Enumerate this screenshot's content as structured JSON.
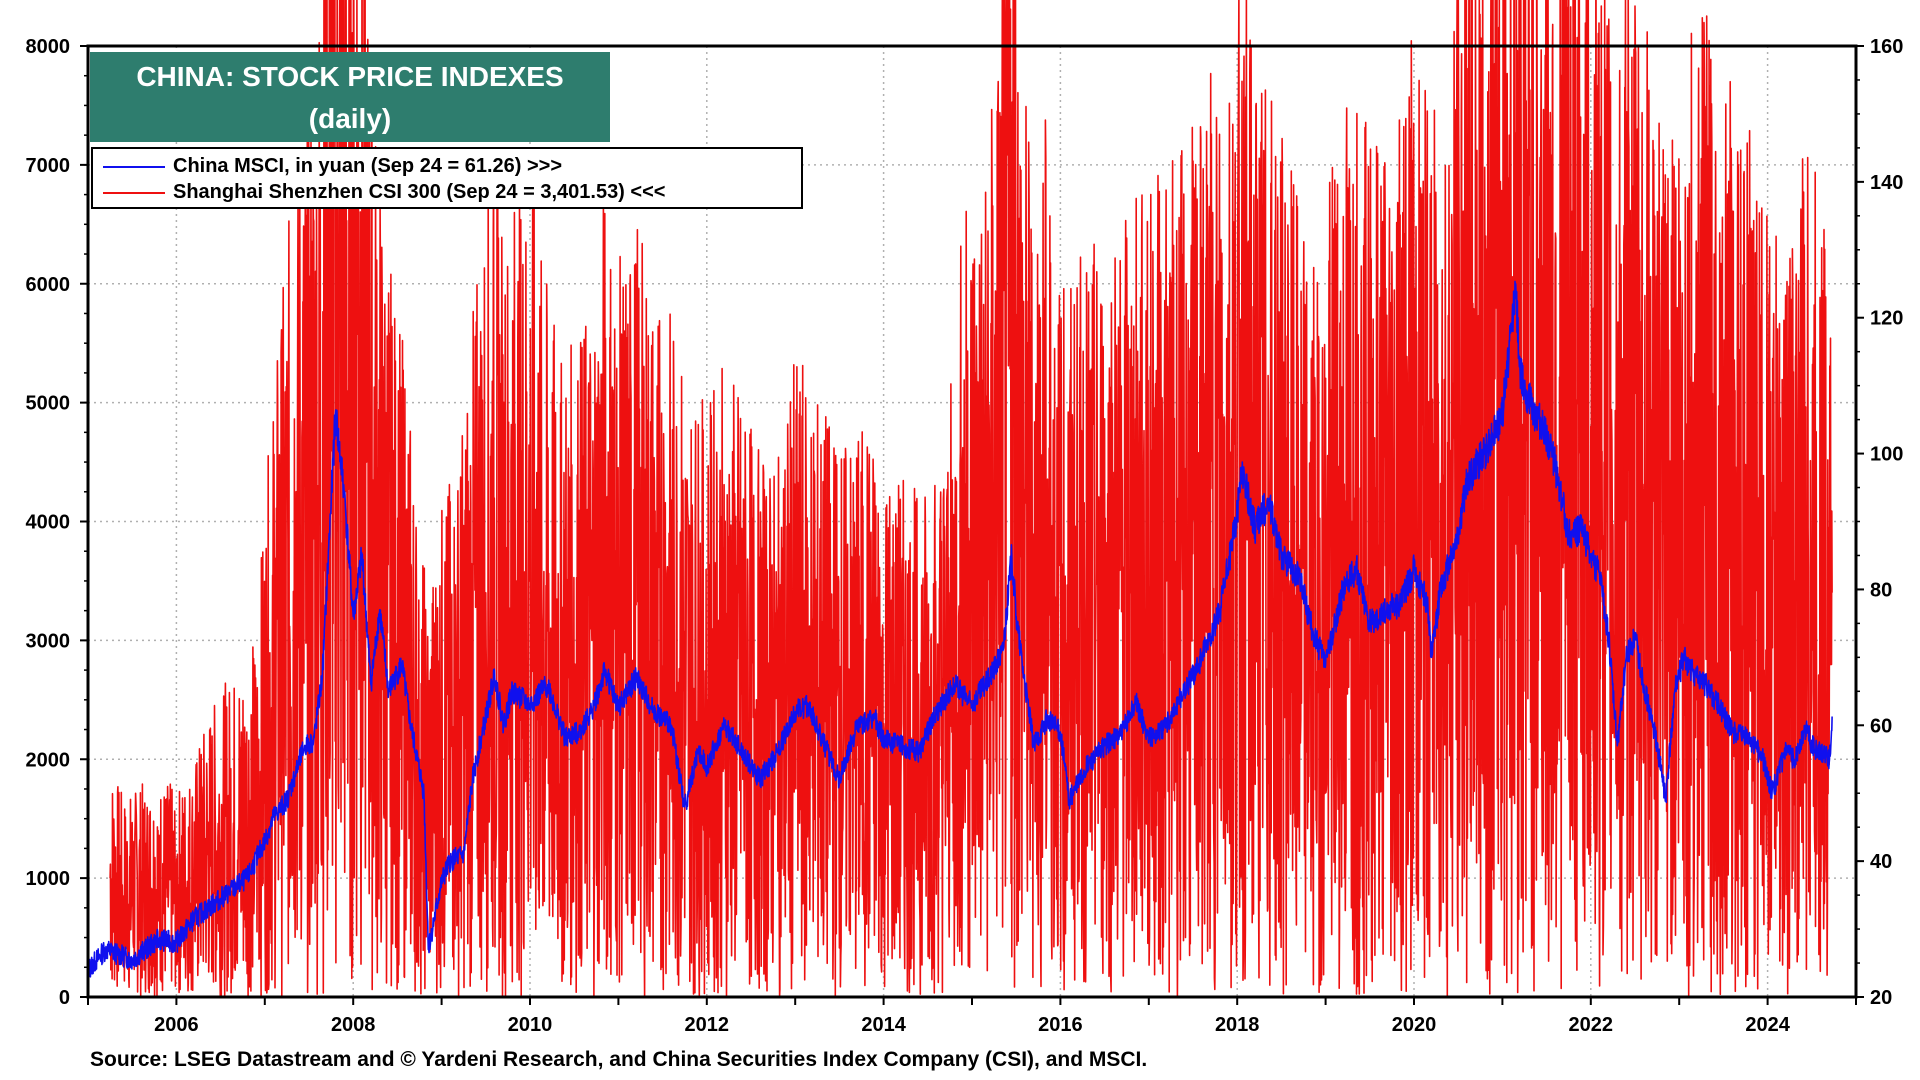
{
  "title": {
    "line1": "CHINA: STOCK PRICE INDEXES",
    "line2": "(daily)"
  },
  "legend": {
    "msci": "China MSCI, in yuan (Sep 24 = 61.26) >>>",
    "csi": "Shanghai Shenzhen CSI 300 (Sep 24 = 3,401.53) <<<"
  },
  "source": "Source: LSEG Datastream and © Yardeni Research, and China Securities Index Company (CSI), and MSCI.",
  "colors": {
    "msci": "#1010ee",
    "csi": "#ee1010",
    "title_bg": "#2e7d6e"
  },
  "chart_data": {
    "type": "line",
    "title": "CHINA: STOCK PRICE INDEXES (daily)",
    "x_range": [
      2005.0,
      2025.0
    ],
    "x_ticks": [
      "2006",
      "2008",
      "2010",
      "2012",
      "2014",
      "2016",
      "2018",
      "2020",
      "2022",
      "2024"
    ],
    "y_left": {
      "range": [
        0,
        8000
      ],
      "ticks": [
        "0",
        "1000",
        "2000",
        "3000",
        "4000",
        "5000",
        "6000",
        "7000",
        "8000"
      ]
    },
    "y_right": {
      "range": [
        20,
        160
      ],
      "ticks": [
        "20",
        "40",
        "60",
        "80",
        "100",
        "120",
        "140",
        "160"
      ]
    },
    "grid": true,
    "series": [
      {
        "name": "China MSCI, in yuan",
        "axis": "right",
        "points": [
          [
            2005.0,
            24.0
          ],
          [
            2005.2,
            27.0
          ],
          [
            2005.5,
            25.5
          ],
          [
            2005.8,
            28.5
          ],
          [
            2006.0,
            28.0
          ],
          [
            2006.2,
            31.5
          ],
          [
            2006.5,
            34.5
          ],
          [
            2006.8,
            37.5
          ],
          [
            2007.0,
            43.0
          ],
          [
            2007.1,
            46.5
          ],
          [
            2007.25,
            49.0
          ],
          [
            2007.45,
            57.0
          ],
          [
            2007.55,
            57.5
          ],
          [
            2007.65,
            67.0
          ],
          [
            2007.8,
            106.0
          ],
          [
            2007.9,
            94.0
          ],
          [
            2008.0,
            76.0
          ],
          [
            2008.1,
            85.0
          ],
          [
            2008.2,
            66.0
          ],
          [
            2008.3,
            77.0
          ],
          [
            2008.4,
            65.0
          ],
          [
            2008.55,
            69.0
          ],
          [
            2008.65,
            60.0
          ],
          [
            2008.8,
            50.0
          ],
          [
            2008.85,
            27.0
          ],
          [
            2009.0,
            37.0
          ],
          [
            2009.1,
            40.0
          ],
          [
            2009.25,
            41.0
          ],
          [
            2009.35,
            52.0
          ],
          [
            2009.6,
            67.5
          ],
          [
            2009.7,
            60.0
          ],
          [
            2009.8,
            65.0
          ],
          [
            2010.0,
            63.0
          ],
          [
            2010.2,
            66.0
          ],
          [
            2010.4,
            58.0
          ],
          [
            2010.55,
            59.0
          ],
          [
            2010.7,
            62.0
          ],
          [
            2010.85,
            68.0
          ],
          [
            2011.0,
            62.5
          ],
          [
            2011.2,
            67.0
          ],
          [
            2011.4,
            62.0
          ],
          [
            2011.6,
            60.0
          ],
          [
            2011.75,
            48.0
          ],
          [
            2011.9,
            56.0
          ],
          [
            2012.0,
            54.0
          ],
          [
            2012.2,
            60.0
          ],
          [
            2012.4,
            56.0
          ],
          [
            2012.6,
            52.0
          ],
          [
            2012.8,
            56.0
          ],
          [
            2013.0,
            62.0
          ],
          [
            2013.15,
            63.0
          ],
          [
            2013.3,
            58.0
          ],
          [
            2013.5,
            52.0
          ],
          [
            2013.7,
            60.0
          ],
          [
            2013.9,
            61.0
          ],
          [
            2014.0,
            58.0
          ],
          [
            2014.2,
            57.0
          ],
          [
            2014.4,
            56.0
          ],
          [
            2014.6,
            62.0
          ],
          [
            2014.8,
            66.0
          ],
          [
            2015.0,
            63.0
          ],
          [
            2015.2,
            67.0
          ],
          [
            2015.35,
            71.0
          ],
          [
            2015.45,
            85.0
          ],
          [
            2015.5,
            76.0
          ],
          [
            2015.6,
            66.0
          ],
          [
            2015.7,
            57.0
          ],
          [
            2015.85,
            61.0
          ],
          [
            2016.0,
            59.0
          ],
          [
            2016.1,
            49.0
          ],
          [
            2016.3,
            54.0
          ],
          [
            2016.5,
            57.0
          ],
          [
            2016.7,
            59.0
          ],
          [
            2016.85,
            63.5
          ],
          [
            2017.0,
            58.0
          ],
          [
            2017.2,
            60.0
          ],
          [
            2017.4,
            65.0
          ],
          [
            2017.6,
            70.0
          ],
          [
            2017.8,
            76.5
          ],
          [
            2018.0,
            91.0
          ],
          [
            2018.05,
            98.0
          ],
          [
            2018.2,
            89.0
          ],
          [
            2018.35,
            93.0
          ],
          [
            2018.5,
            85.0
          ],
          [
            2018.7,
            82.0
          ],
          [
            2018.85,
            74.0
          ],
          [
            2019.0,
            69.0
          ],
          [
            2019.2,
            80.0
          ],
          [
            2019.35,
            83.0
          ],
          [
            2019.5,
            75.0
          ],
          [
            2019.7,
            77.0
          ],
          [
            2019.85,
            78.0
          ],
          [
            2020.0,
            83.0
          ],
          [
            2020.15,
            78.0
          ],
          [
            2020.2,
            70.0
          ],
          [
            2020.3,
            80.0
          ],
          [
            2020.5,
            88.0
          ],
          [
            2020.6,
            96.0
          ],
          [
            2020.8,
            100.0
          ],
          [
            2021.0,
            106.0
          ],
          [
            2021.1,
            118.0
          ],
          [
            2021.15,
            125.0
          ],
          [
            2021.2,
            112.0
          ],
          [
            2021.35,
            106.0
          ],
          [
            2021.5,
            103.0
          ],
          [
            2021.6,
            98.0
          ],
          [
            2021.75,
            88.0
          ],
          [
            2021.9,
            89.0
          ],
          [
            2022.0,
            85.0
          ],
          [
            2022.1,
            82.0
          ],
          [
            2022.2,
            73.0
          ],
          [
            2022.3,
            57.0
          ],
          [
            2022.4,
            70.0
          ],
          [
            2022.5,
            73.0
          ],
          [
            2022.6,
            66.0
          ],
          [
            2022.75,
            57.0
          ],
          [
            2022.85,
            49.0
          ],
          [
            2022.95,
            65.0
          ],
          [
            2023.05,
            70.0
          ],
          [
            2023.2,
            67.0
          ],
          [
            2023.3,
            66.0
          ],
          [
            2023.45,
            63.0
          ],
          [
            2023.6,
            59.0
          ],
          [
            2023.8,
            58.0
          ],
          [
            2023.95,
            55.0
          ],
          [
            2024.05,
            50.0
          ],
          [
            2024.2,
            56.0
          ],
          [
            2024.3,
            55.0
          ],
          [
            2024.45,
            60.0
          ],
          [
            2024.5,
            57.0
          ],
          [
            2024.6,
            56.0
          ],
          [
            2024.7,
            55.0
          ],
          [
            2024.73,
            61.3
          ]
        ]
      },
      {
        "name": "Shanghai Shenzhen CSI 300",
        "axis": "left",
        "points": [
          [
            2005.25,
            1000
          ],
          [
            2005.4,
            850
          ],
          [
            2005.6,
            900
          ],
          [
            2005.8,
            950
          ],
          [
            2006.0,
            880
          ],
          [
            2006.2,
            1000
          ],
          [
            2006.35,
            1200
          ],
          [
            2006.5,
            1300
          ],
          [
            2006.7,
            1400
          ],
          [
            2006.9,
            1550
          ],
          [
            2007.0,
            2100
          ],
          [
            2007.15,
            2800
          ],
          [
            2007.35,
            3600
          ],
          [
            2007.5,
            3800
          ],
          [
            2007.6,
            4300
          ],
          [
            2007.7,
            5300
          ],
          [
            2007.8,
            5850
          ],
          [
            2007.9,
            5300
          ],
          [
            2008.0,
            5100
          ],
          [
            2008.05,
            5700
          ],
          [
            2008.15,
            4500
          ],
          [
            2008.3,
            3500
          ],
          [
            2008.45,
            3000
          ],
          [
            2008.6,
            2700
          ],
          [
            2008.75,
            2000
          ],
          [
            2008.85,
            1700
          ],
          [
            2009.0,
            2100
          ],
          [
            2009.2,
            2300
          ],
          [
            2009.35,
            2900
          ],
          [
            2009.5,
            3400
          ],
          [
            2009.6,
            3700
          ],
          [
            2009.7,
            3200
          ],
          [
            2009.85,
            3500
          ],
          [
            2010.0,
            3500
          ],
          [
            2010.15,
            3100
          ],
          [
            2010.35,
            2700
          ],
          [
            2010.55,
            2800
          ],
          [
            2010.7,
            3000
          ],
          [
            2010.85,
            3500
          ],
          [
            2011.0,
            3100
          ],
          [
            2011.2,
            3300
          ],
          [
            2011.4,
            3000
          ],
          [
            2011.6,
            2900
          ],
          [
            2011.8,
            2600
          ],
          [
            2012.0,
            2500
          ],
          [
            2012.2,
            2700
          ],
          [
            2012.4,
            2550
          ],
          [
            2012.6,
            2300
          ],
          [
            2012.8,
            2250
          ],
          [
            2013.0,
            2700
          ],
          [
            2013.2,
            2600
          ],
          [
            2013.4,
            2450
          ],
          [
            2013.6,
            2350
          ],
          [
            2013.8,
            2450
          ],
          [
            2014.0,
            2300
          ],
          [
            2014.2,
            2200
          ],
          [
            2014.4,
            2150
          ],
          [
            2014.6,
            2300
          ],
          [
            2014.75,
            2500
          ],
          [
            2014.85,
            3200
          ],
          [
            2015.0,
            3600
          ],
          [
            2015.15,
            3500
          ],
          [
            2015.3,
            4200
          ],
          [
            2015.42,
            5350
          ],
          [
            2015.5,
            4800
          ],
          [
            2015.58,
            4000
          ],
          [
            2015.7,
            3400
          ],
          [
            2015.85,
            3800
          ],
          [
            2015.95,
            3200
          ],
          [
            2016.05,
            3000
          ],
          [
            2016.2,
            3100
          ],
          [
            2016.4,
            3200
          ],
          [
            2016.6,
            3300
          ],
          [
            2016.8,
            3400
          ],
          [
            2017.0,
            3450
          ],
          [
            2017.2,
            3500
          ],
          [
            2017.4,
            3600
          ],
          [
            2017.6,
            3750
          ],
          [
            2017.85,
            4100
          ],
          [
            2018.05,
            4350
          ],
          [
            2018.2,
            4050
          ],
          [
            2018.4,
            3850
          ],
          [
            2018.6,
            3500
          ],
          [
            2018.8,
            3200
          ],
          [
            2018.95,
            3000
          ],
          [
            2019.1,
            3700
          ],
          [
            2019.3,
            4000
          ],
          [
            2019.45,
            3700
          ],
          [
            2019.6,
            3800
          ],
          [
            2019.8,
            3900
          ],
          [
            2020.0,
            4100
          ],
          [
            2020.2,
            3700
          ],
          [
            2020.4,
            4000
          ],
          [
            2020.55,
            4700
          ],
          [
            2020.7,
            4800
          ],
          [
            2020.85,
            4900
          ],
          [
            2021.0,
            5400
          ],
          [
            2021.1,
            5900
          ],
          [
            2021.2,
            5100
          ],
          [
            2021.35,
            5300
          ],
          [
            2021.5,
            5000
          ],
          [
            2021.7,
            4900
          ],
          [
            2021.85,
            5000
          ],
          [
            2022.0,
            4800
          ],
          [
            2022.15,
            4500
          ],
          [
            2022.3,
            4000
          ],
          [
            2022.45,
            4400
          ],
          [
            2022.6,
            4200
          ],
          [
            2022.75,
            3800
          ],
          [
            2022.85,
            3600
          ],
          [
            2023.0,
            4000
          ],
          [
            2023.15,
            4100
          ],
          [
            2023.3,
            4150
          ],
          [
            2023.5,
            3900
          ],
          [
            2023.7,
            3800
          ],
          [
            2023.9,
            3500
          ],
          [
            2024.05,
            3300
          ],
          [
            2024.15,
            3100
          ],
          [
            2024.3,
            3500
          ],
          [
            2024.45,
            3600
          ],
          [
            2024.6,
            3400
          ],
          [
            2024.7,
            3200
          ],
          [
            2024.73,
            3401.53
          ]
        ]
      }
    ]
  }
}
